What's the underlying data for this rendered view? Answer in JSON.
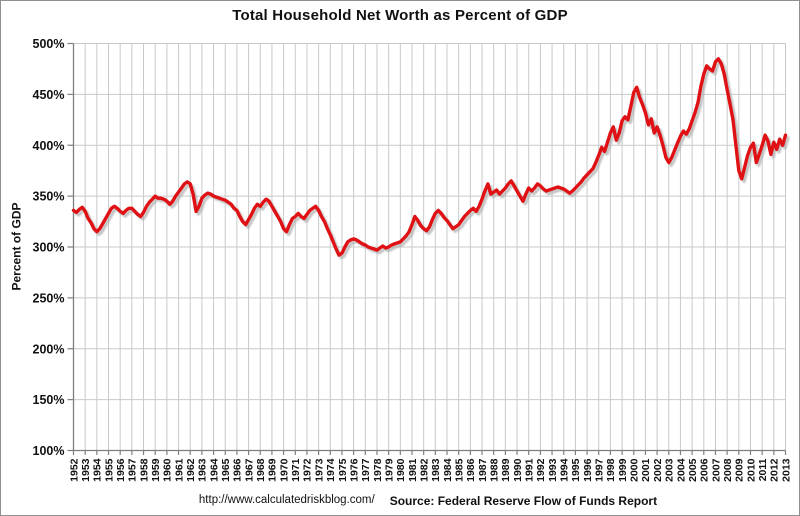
{
  "chart_data": {
    "type": "line",
    "title": "Total Household Net Worth as Percent of GDP",
    "ylabel": "Percent of GDP",
    "xlabel": "",
    "legend": "none",
    "grid": true,
    "ylim": [
      100,
      500
    ],
    "xlim": [
      1952,
      2013
    ],
    "y_tick_step": 50,
    "y_tick_labels": [
      "500%",
      "450%",
      "400%",
      "350%",
      "300%",
      "250%",
      "200%",
      "150%",
      "100%"
    ],
    "x_tick_labels": [
      "1952",
      "1953",
      "1954",
      "1955",
      "1956",
      "1957",
      "1958",
      "1959",
      "1960",
      "1961",
      "1962",
      "1963",
      "1964",
      "1965",
      "1966",
      "1967",
      "1968",
      "1969",
      "1970",
      "1971",
      "1972",
      "1973",
      "1974",
      "1975",
      "1976",
      "1977",
      "1978",
      "1979",
      "1980",
      "1981",
      "1982",
      "1983",
      "1984",
      "1985",
      "1986",
      "1987",
      "1988",
      "1989",
      "1990",
      "1991",
      "1992",
      "1993",
      "1994",
      "1995",
      "1996",
      "1997",
      "1998",
      "1999",
      "2000",
      "2001",
      "2002",
      "2003",
      "2004",
      "2005",
      "2006",
      "2007",
      "2008",
      "2009",
      "2010",
      "2011",
      "2012",
      "2013"
    ],
    "line_color": "#e01114",
    "shadow_color": "#b0b0b0",
    "grid_color": "#c9c9c9",
    "axis_color": "#7f7f7f",
    "series": [
      {
        "name": "Total household net worth as percent of GDP",
        "x_start": 1952,
        "x_step": 0.25,
        "values": [
          336,
          334,
          337,
          339,
          335,
          328,
          324,
          318,
          315,
          318,
          323,
          328,
          333,
          338,
          340,
          338,
          335,
          333,
          336,
          338,
          338,
          335,
          332,
          330,
          334,
          340,
          344,
          347,
          350,
          348,
          348,
          347,
          345,
          342,
          345,
          350,
          354,
          358,
          362,
          364,
          362,
          352,
          335,
          340,
          348,
          351,
          353,
          352,
          350,
          349,
          348,
          347,
          346,
          344,
          342,
          338,
          336,
          330,
          325,
          322,
          327,
          332,
          338,
          342,
          340,
          344,
          347,
          345,
          340,
          335,
          330,
          325,
          318,
          315,
          322,
          328,
          330,
          333,
          330,
          328,
          332,
          336,
          338,
          340,
          336,
          330,
          325,
          318,
          312,
          305,
          298,
          292,
          294,
          300,
          305,
          307,
          308,
          307,
          305,
          303,
          302,
          300,
          299,
          298,
          297,
          299,
          301,
          299,
          300,
          302,
          303,
          304,
          305,
          308,
          311,
          315,
          322,
          330,
          326,
          321,
          318,
          316,
          320,
          327,
          333,
          336,
          333,
          329,
          326,
          322,
          318,
          320,
          322,
          326,
          330,
          333,
          336,
          338,
          335,
          340,
          347,
          355,
          362,
          352,
          354,
          356,
          352,
          355,
          358,
          362,
          365,
          360,
          355,
          350,
          345,
          352,
          358,
          355,
          358,
          362,
          360,
          357,
          355,
          356,
          357,
          358,
          359,
          358,
          357,
          355,
          353,
          355,
          358,
          361,
          364,
          368,
          371,
          374,
          377,
          383,
          390,
          398,
          394,
          403,
          412,
          418,
          405,
          412,
          424,
          428,
          425,
          438,
          452,
          457,
          447,
          440,
          432,
          420,
          426,
          412,
          418,
          410,
          400,
          388,
          383,
          388,
          395,
          402,
          409,
          414,
          411,
          416,
          424,
          432,
          442,
          458,
          470,
          478,
          475,
          473,
          482,
          485,
          480,
          470,
          455,
          440,
          425,
          400,
          375,
          367,
          378,
          390,
          398,
          402,
          383,
          391,
          400,
          410,
          404,
          391,
          403,
          396,
          406,
          400,
          410
        ]
      }
    ]
  },
  "footer": {
    "url": "http://www.calculatedriskblog.com/",
    "source": "Source: Federal Reserve Flow of Funds Report"
  }
}
